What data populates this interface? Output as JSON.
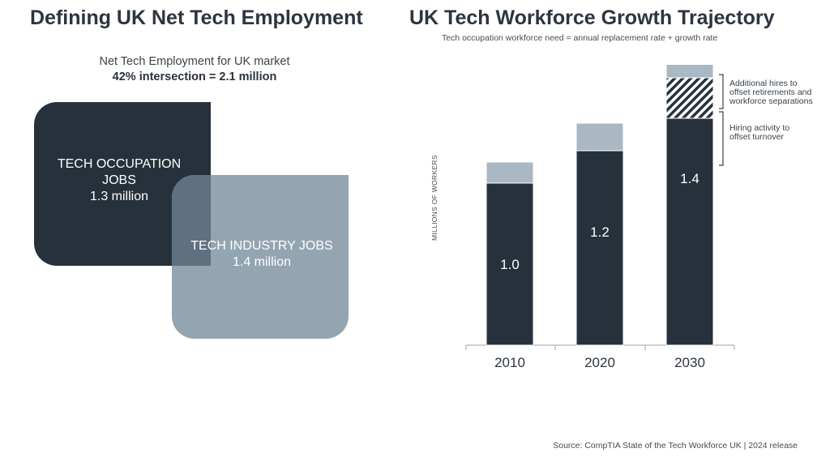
{
  "left_panel": {
    "title": "Defining UK Net Tech Employment",
    "caption": "Net Tech Employment for UK market",
    "caption_bold": "42% intersection = 2.1 million",
    "occupation_box": {
      "label_line1": "TECH OCCUPATION",
      "label_line2": "JOBS",
      "value": "1.3 million"
    },
    "industry_box": {
      "label": "TECH INDUSTRY JOBS",
      "value": "1.4 million"
    }
  },
  "right_panel": {
    "title": "UK Tech Workforce Growth Trajectory",
    "subtitle": "Tech occupation workforce need = annual replacement rate + growth rate"
  },
  "chart_data": {
    "type": "bar",
    "stacked": true,
    "categories": [
      "2010",
      "2020",
      "2030"
    ],
    "ylabel": "MILLIONS OF WORKERS",
    "series": [
      {
        "values": [
          1.0,
          1.2,
          1.4
        ],
        "data_labels": [
          "1.0",
          "1.2",
          "1.4"
        ]
      },
      {
        "values": [
          null,
          null,
          0.25
        ],
        "pattern": "hatched"
      },
      {
        "values": [
          0.13,
          0.17,
          0.19
        ]
      }
    ],
    "annotations": [
      {
        "text": [
          "Additional hires to",
          "offset retirements and",
          "workforce separations"
        ],
        "category": "2030"
      },
      {
        "text": [
          "Hiring activity to",
          "offset turnover"
        ],
        "category": "2030"
      }
    ],
    "colors": {
      "base": "#27313b",
      "hatch": "#27313b",
      "top": "#a9b8c2"
    },
    "grid": false
  },
  "source": "Source: CompTIA State of the Tech Workforce UK | 2024 release"
}
